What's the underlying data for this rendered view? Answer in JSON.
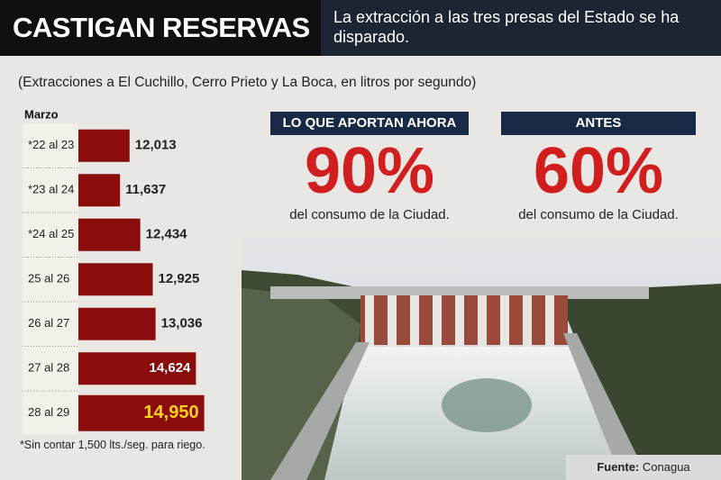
{
  "header": {
    "title": "CASTIGAN RESERVAS",
    "deck": "La extracción a las tres presas del Estado se ha disparado."
  },
  "chart_data": {
    "type": "bar",
    "orientation": "horizontal",
    "subtitle": "(Extracciones a El Cuchillo, Cerro Prieto y La Boca, en litros por segundo)",
    "category_header": "Marzo",
    "categories": [
      "*22 al 23",
      "*23 al 24",
      "*24 al 25",
      "25 al 26",
      "26 al 27",
      "27 al 28",
      "28 al 29"
    ],
    "values": [
      12013,
      11637,
      12434,
      12925,
      13036,
      14624,
      14950
    ],
    "value_labels": [
      "12,013",
      "11,637",
      "12,434",
      "12,925",
      "13,036",
      "14,624",
      "14,950"
    ],
    "color": "#8a0c0c",
    "highlight_color": "#ffd21a",
    "xlim": [
      10000,
      15000
    ],
    "footnote": "*Sin contar 1,500 lts./seg. para riego."
  },
  "callouts": [
    {
      "heading": "LO QUE APORTAN AHORA",
      "value": "90%",
      "caption": "del consumo de la Ciudad."
    },
    {
      "heading": "ANTES",
      "value": "60%",
      "caption": "del consumo de la Ciudad."
    }
  ],
  "source": {
    "label": "Fuente:",
    "text": "Conagua"
  }
}
